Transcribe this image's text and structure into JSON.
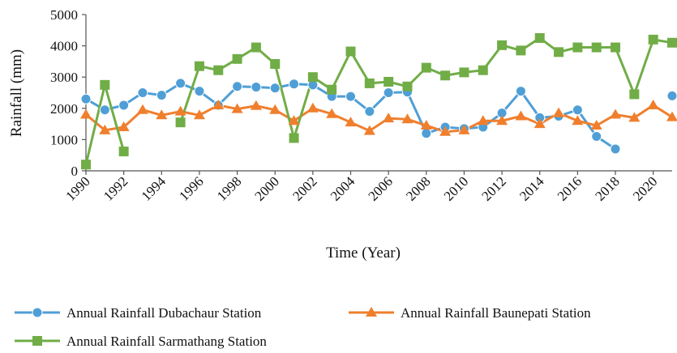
{
  "chart_data": {
    "type": "line",
    "x_label": "Time (Year)",
    "y_label": "Rainfall (mm)",
    "x": [
      1990,
      1991,
      1992,
      1993,
      1994,
      1995,
      1996,
      1997,
      1998,
      1999,
      2000,
      2001,
      2002,
      2003,
      2004,
      2005,
      2006,
      2007,
      2008,
      2009,
      2010,
      2011,
      2012,
      2013,
      2014,
      2015,
      2016,
      2017,
      2018,
      2019,
      2020,
      2021
    ],
    "series": [
      {
        "name": "Annual Rainfall Dubachaur Station",
        "color": "#4f9fd6",
        "marker": "circle",
        "values": [
          2300,
          1950,
          2100,
          2500,
          2420,
          2800,
          2550,
          2100,
          2700,
          2680,
          2650,
          2780,
          2750,
          2380,
          2380,
          1900,
          2500,
          2520,
          1200,
          1400,
          1350,
          1400,
          1850,
          2550,
          1700,
          1750,
          1950,
          1100,
          700,
          null,
          null,
          2400
        ]
      },
      {
        "name": "Annual Rainfall Baunepati Station",
        "color": "#f07f2d",
        "marker": "triangle",
        "values": [
          1800,
          1300,
          1400,
          1950,
          1780,
          1900,
          1780,
          2100,
          1980,
          2080,
          1950,
          1600,
          2000,
          1820,
          1550,
          1280,
          1680,
          1650,
          1450,
          1250,
          1300,
          1600,
          1600,
          1750,
          1500,
          1850,
          1600,
          1450,
          1800,
          1700,
          2100,
          1720
        ]
      },
      {
        "name": "Annual Rainfall Sarmathang Station",
        "color": "#71ad47",
        "marker": "square",
        "values": [
          200,
          2750,
          620,
          null,
          null,
          1550,
          3350,
          3220,
          3580,
          3950,
          3420,
          1050,
          3000,
          2600,
          3820,
          2800,
          2850,
          2700,
          3300,
          3050,
          3150,
          3220,
          4020,
          3850,
          4250,
          3800,
          3950,
          3950,
          3950,
          2450,
          4200,
          4100
        ]
      }
    ],
    "xlim": [
      1990,
      2021
    ],
    "ylim": [
      0,
      5000
    ],
    "xticks": [
      1990,
      1992,
      1994,
      1996,
      1998,
      2000,
      2002,
      2004,
      2006,
      2008,
      2010,
      2012,
      2014,
      2016,
      2018,
      2020
    ],
    "yticks": [
      0,
      1000,
      2000,
      3000,
      4000,
      5000
    ]
  }
}
